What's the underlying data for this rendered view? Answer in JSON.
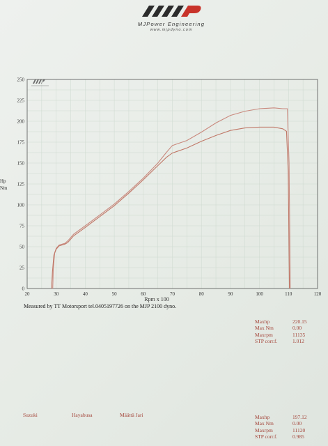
{
  "header": {
    "brand": "MJPower Engineering",
    "url": "www.mjpdyno.com"
  },
  "chart_data": {
    "type": "line",
    "xlabel": "Rpm x 100",
    "ylabel_lines": [
      "Hp",
      "Nm"
    ],
    "xlim": [
      20,
      120
    ],
    "ylim": [
      0,
      250
    ],
    "x_ticks": [
      20,
      30,
      40,
      50,
      60,
      70,
      80,
      90,
      100,
      110,
      120
    ],
    "y_ticks": [
      0,
      25,
      50,
      75,
      100,
      125,
      150,
      175,
      200,
      225,
      250
    ],
    "grid": true,
    "series": [
      {
        "color": "#c9897e",
        "points": [
          [
            28.8,
            0
          ],
          [
            29,
            24
          ],
          [
            29.5,
            43
          ],
          [
            30,
            48
          ],
          [
            31,
            52
          ],
          [
            33,
            54
          ],
          [
            34,
            57
          ],
          [
            36,
            65
          ],
          [
            38,
            70
          ],
          [
            40,
            75
          ],
          [
            45,
            88
          ],
          [
            50,
            101
          ],
          [
            55,
            116
          ],
          [
            60,
            132
          ],
          [
            65,
            150
          ],
          [
            68,
            163
          ],
          [
            70,
            171
          ],
          [
            75,
            177
          ],
          [
            80,
            187
          ],
          [
            85,
            198
          ],
          [
            90,
            207
          ],
          [
            95,
            212
          ],
          [
            100,
            215
          ],
          [
            105,
            216
          ],
          [
            108,
            215
          ],
          [
            109.6,
            215
          ],
          [
            110.2,
            150
          ],
          [
            110.6,
            0
          ]
        ]
      },
      {
        "color": "#c07868",
        "points": [
          [
            28.4,
            0
          ],
          [
            28.7,
            20
          ],
          [
            29.2,
            40
          ],
          [
            30,
            47
          ],
          [
            31,
            51
          ],
          [
            33,
            53
          ],
          [
            34,
            55
          ],
          [
            36,
            63
          ],
          [
            38,
            68
          ],
          [
            40,
            73
          ],
          [
            45,
            86
          ],
          [
            50,
            99
          ],
          [
            55,
            114
          ],
          [
            60,
            130
          ],
          [
            65,
            147
          ],
          [
            68,
            157
          ],
          [
            70,
            162
          ],
          [
            75,
            168
          ],
          [
            80,
            176
          ],
          [
            85,
            183
          ],
          [
            90,
            189
          ],
          [
            95,
            192
          ],
          [
            100,
            193
          ],
          [
            105,
            193
          ],
          [
            108,
            191
          ],
          [
            109.3,
            188
          ],
          [
            109.9,
            140
          ],
          [
            110.3,
            0
          ]
        ]
      }
    ]
  },
  "caption": "Measured by TT Motorsport tel.0405197726 on the MJP 2100 dyno.",
  "stats_top": [
    {
      "label": "Maxhp",
      "value": "220.15"
    },
    {
      "label": "Max Nm",
      "value": "0.00"
    },
    {
      "label": "Maxrpm",
      "value": "11135"
    },
    {
      "label": "STP corr.f.",
      "value": "1.012"
    }
  ],
  "stats_bottom": [
    {
      "label": "Maxhp",
      "value": "197.12"
    },
    {
      "label": "Max Nm",
      "value": "0.00"
    },
    {
      "label": "Maxrpm",
      "value": "11120"
    },
    {
      "label": "STP corr.f.",
      "value": "0.985"
    }
  ],
  "vehicle": {
    "make": "Suzuki",
    "model": "Hayabusa",
    "owner": "Määttä Jari"
  }
}
